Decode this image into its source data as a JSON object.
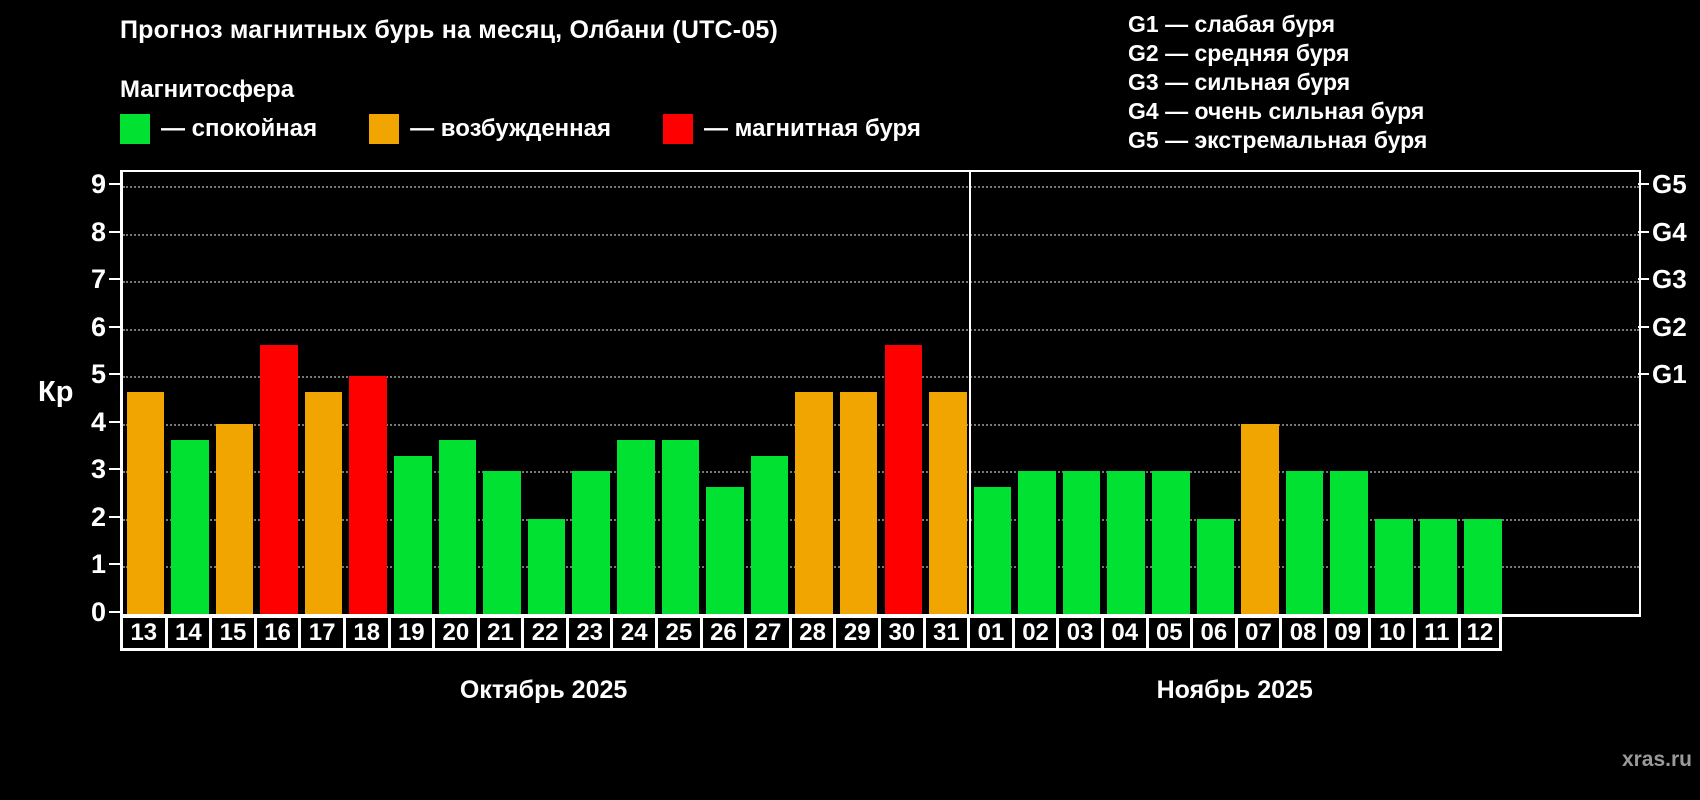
{
  "title": "Прогноз магнитных бурь на месяц, Олбани (UTC-05)",
  "subtitle": "Магнитосфера",
  "watermark": "xras.ru",
  "colors": {
    "quiet": "#00e132",
    "excited": "#f0a500",
    "storm": "#ff0000",
    "background": "#000000",
    "text": "#ffffff",
    "grid": "#787878"
  },
  "legend": {
    "items": [
      {
        "key": "quiet",
        "label": "— спокойная"
      },
      {
        "key": "excited",
        "label": "— возбужденная"
      },
      {
        "key": "storm",
        "label": "— магнитная буря"
      }
    ]
  },
  "g_legend": [
    "G1 — слабая буря",
    "G2 — средняя буря",
    "G3 — сильная буря",
    "G4 — очень сильная буря",
    "G5 — экстремальная буря"
  ],
  "chart_data": {
    "type": "bar",
    "title": "Прогноз магнитных бурь на месяц, Олбани (UTC-05)",
    "ylabel": "Кр",
    "ylim": [
      0,
      9.3
    ],
    "yticks": [
      0,
      1,
      2,
      3,
      4,
      5,
      6,
      7,
      8,
      9
    ],
    "right_ticks": [
      {
        "label": "G1",
        "value": 5
      },
      {
        "label": "G2",
        "value": 6
      },
      {
        "label": "G3",
        "value": 7
      },
      {
        "label": "G4",
        "value": 8
      },
      {
        "label": "G5",
        "value": 9
      }
    ],
    "grid": "dotted horizontal",
    "legend_position": "top",
    "total_slots": 34,
    "months": [
      {
        "label": "Октябрь 2025",
        "days": 19
      },
      {
        "label": "Ноябрь 2025",
        "days": 12
      }
    ],
    "bars": [
      {
        "day": "13",
        "value": 4.67,
        "status": "excited"
      },
      {
        "day": "14",
        "value": 3.67,
        "status": "quiet"
      },
      {
        "day": "15",
        "value": 4.0,
        "status": "excited"
      },
      {
        "day": "16",
        "value": 5.67,
        "status": "storm"
      },
      {
        "day": "17",
        "value": 4.67,
        "status": "excited"
      },
      {
        "day": "18",
        "value": 5.0,
        "status": "storm"
      },
      {
        "day": "19",
        "value": 3.33,
        "status": "quiet"
      },
      {
        "day": "20",
        "value": 3.67,
        "status": "quiet"
      },
      {
        "day": "21",
        "value": 3.0,
        "status": "quiet"
      },
      {
        "day": "22",
        "value": 2.0,
        "status": "quiet"
      },
      {
        "day": "23",
        "value": 3.0,
        "status": "quiet"
      },
      {
        "day": "24",
        "value": 3.67,
        "status": "quiet"
      },
      {
        "day": "25",
        "value": 3.67,
        "status": "quiet"
      },
      {
        "day": "26",
        "value": 2.67,
        "status": "quiet"
      },
      {
        "day": "27",
        "value": 3.33,
        "status": "quiet"
      },
      {
        "day": "28",
        "value": 4.67,
        "status": "excited"
      },
      {
        "day": "29",
        "value": 4.67,
        "status": "excited"
      },
      {
        "day": "30",
        "value": 5.67,
        "status": "storm"
      },
      {
        "day": "31",
        "value": 4.67,
        "status": "excited"
      },
      {
        "day": "01",
        "value": 2.67,
        "status": "quiet"
      },
      {
        "day": "02",
        "value": 3.0,
        "status": "quiet"
      },
      {
        "day": "03",
        "value": 3.0,
        "status": "quiet"
      },
      {
        "day": "04",
        "value": 3.0,
        "status": "quiet"
      },
      {
        "day": "05",
        "value": 3.0,
        "status": "quiet"
      },
      {
        "day": "06",
        "value": 2.0,
        "status": "quiet"
      },
      {
        "day": "07",
        "value": 4.0,
        "status": "excited"
      },
      {
        "day": "08",
        "value": 3.0,
        "status": "quiet"
      },
      {
        "day": "09",
        "value": 3.0,
        "status": "quiet"
      },
      {
        "day": "10",
        "value": 2.0,
        "status": "quiet"
      },
      {
        "day": "11",
        "value": 2.0,
        "status": "quiet"
      },
      {
        "day": "12",
        "value": 2.0,
        "status": "quiet"
      }
    ]
  }
}
